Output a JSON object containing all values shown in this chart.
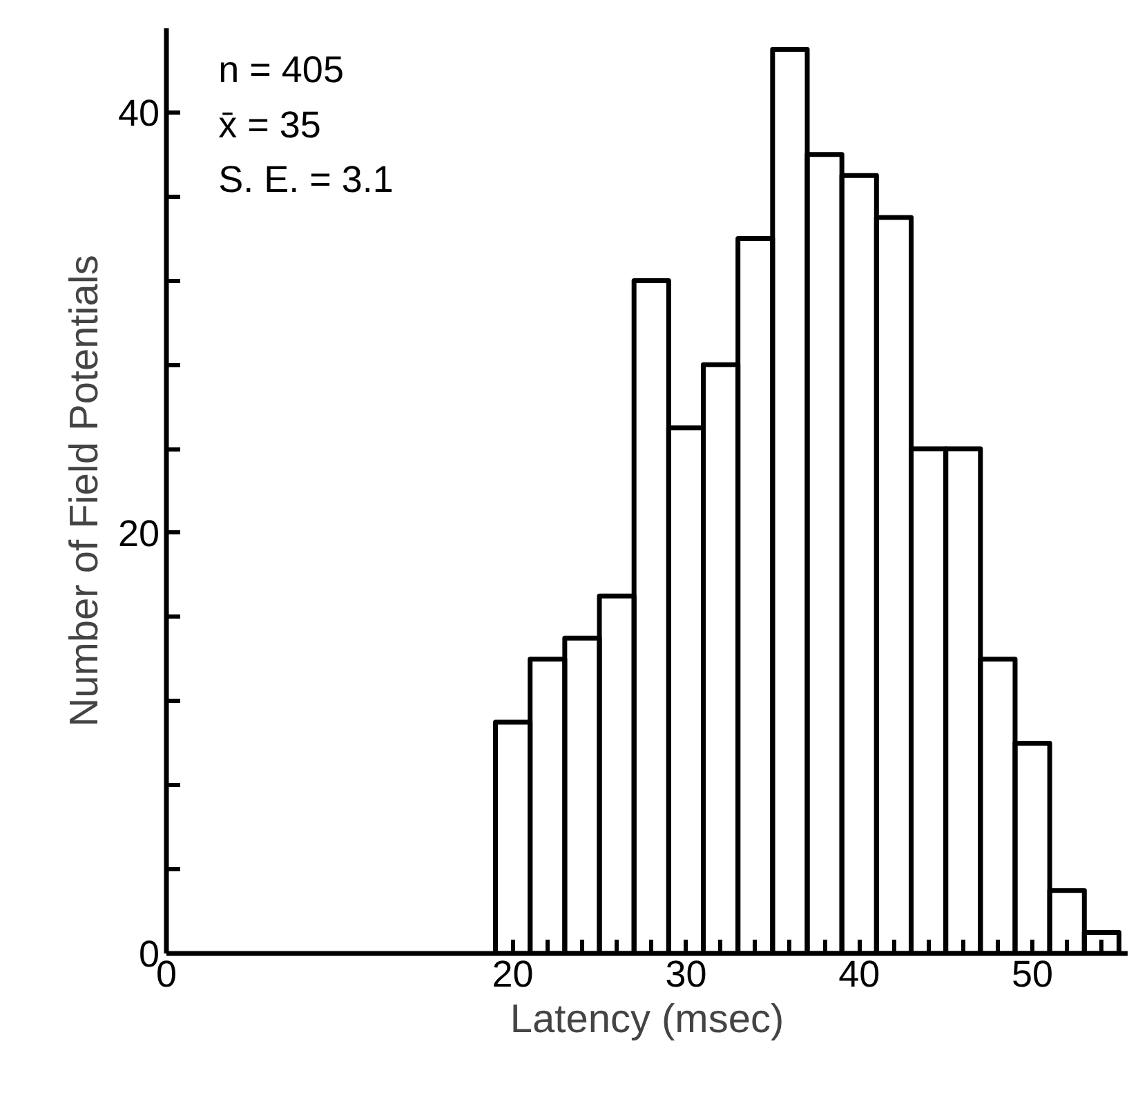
{
  "chart_data": {
    "type": "histogram",
    "xlabel": "Latency (msec)",
    "ylabel": "Number of Field Potentials",
    "bins": [
      19,
      21,
      23,
      25,
      27,
      29,
      31,
      33,
      35,
      37,
      39,
      41,
      43,
      45,
      47,
      49,
      51,
      53,
      55
    ],
    "values": [
      11,
      14,
      15,
      17,
      32,
      25,
      28,
      34,
      43,
      38,
      37,
      35,
      24,
      24,
      14,
      10,
      3,
      1
    ],
    "color": "#000000",
    "xlim": [
      0,
      55.5
    ],
    "ylim": [
      0,
      44
    ],
    "xticks": [
      0,
      20,
      {
        "value": 22,
        "label": null
      },
      {
        "value": 24,
        "label": null
      },
      {
        "value": 26,
        "label": null
      },
      {
        "value": 28,
        "label": null
      },
      30,
      {
        "value": 32,
        "label": null
      },
      {
        "value": 34,
        "label": null
      },
      {
        "value": 36,
        "label": null
      },
      {
        "value": 38,
        "label": null
      },
      40,
      {
        "value": 42,
        "label": null
      },
      {
        "value": 44,
        "label": null
      },
      {
        "value": 46,
        "label": null
      },
      {
        "value": 48,
        "label": null
      },
      50,
      {
        "value": 52,
        "label": null
      },
      {
        "value": 54,
        "label": null
      }
    ],
    "yticks": [
      0,
      {
        "value": 4,
        "label": null
      },
      {
        "value": 8,
        "label": null
      },
      {
        "value": 12,
        "label": null
      },
      {
        "value": 16,
        "label": null
      },
      20,
      {
        "value": 24,
        "label": null
      },
      {
        "value": 28,
        "label": null
      },
      {
        "value": 32,
        "label": null
      },
      {
        "value": 36,
        "label": null
      },
      40
    ],
    "annotations": [
      "n = 405",
      "x̄ = 35",
      "S. E. = 3.1"
    ],
    "grid": false
  }
}
